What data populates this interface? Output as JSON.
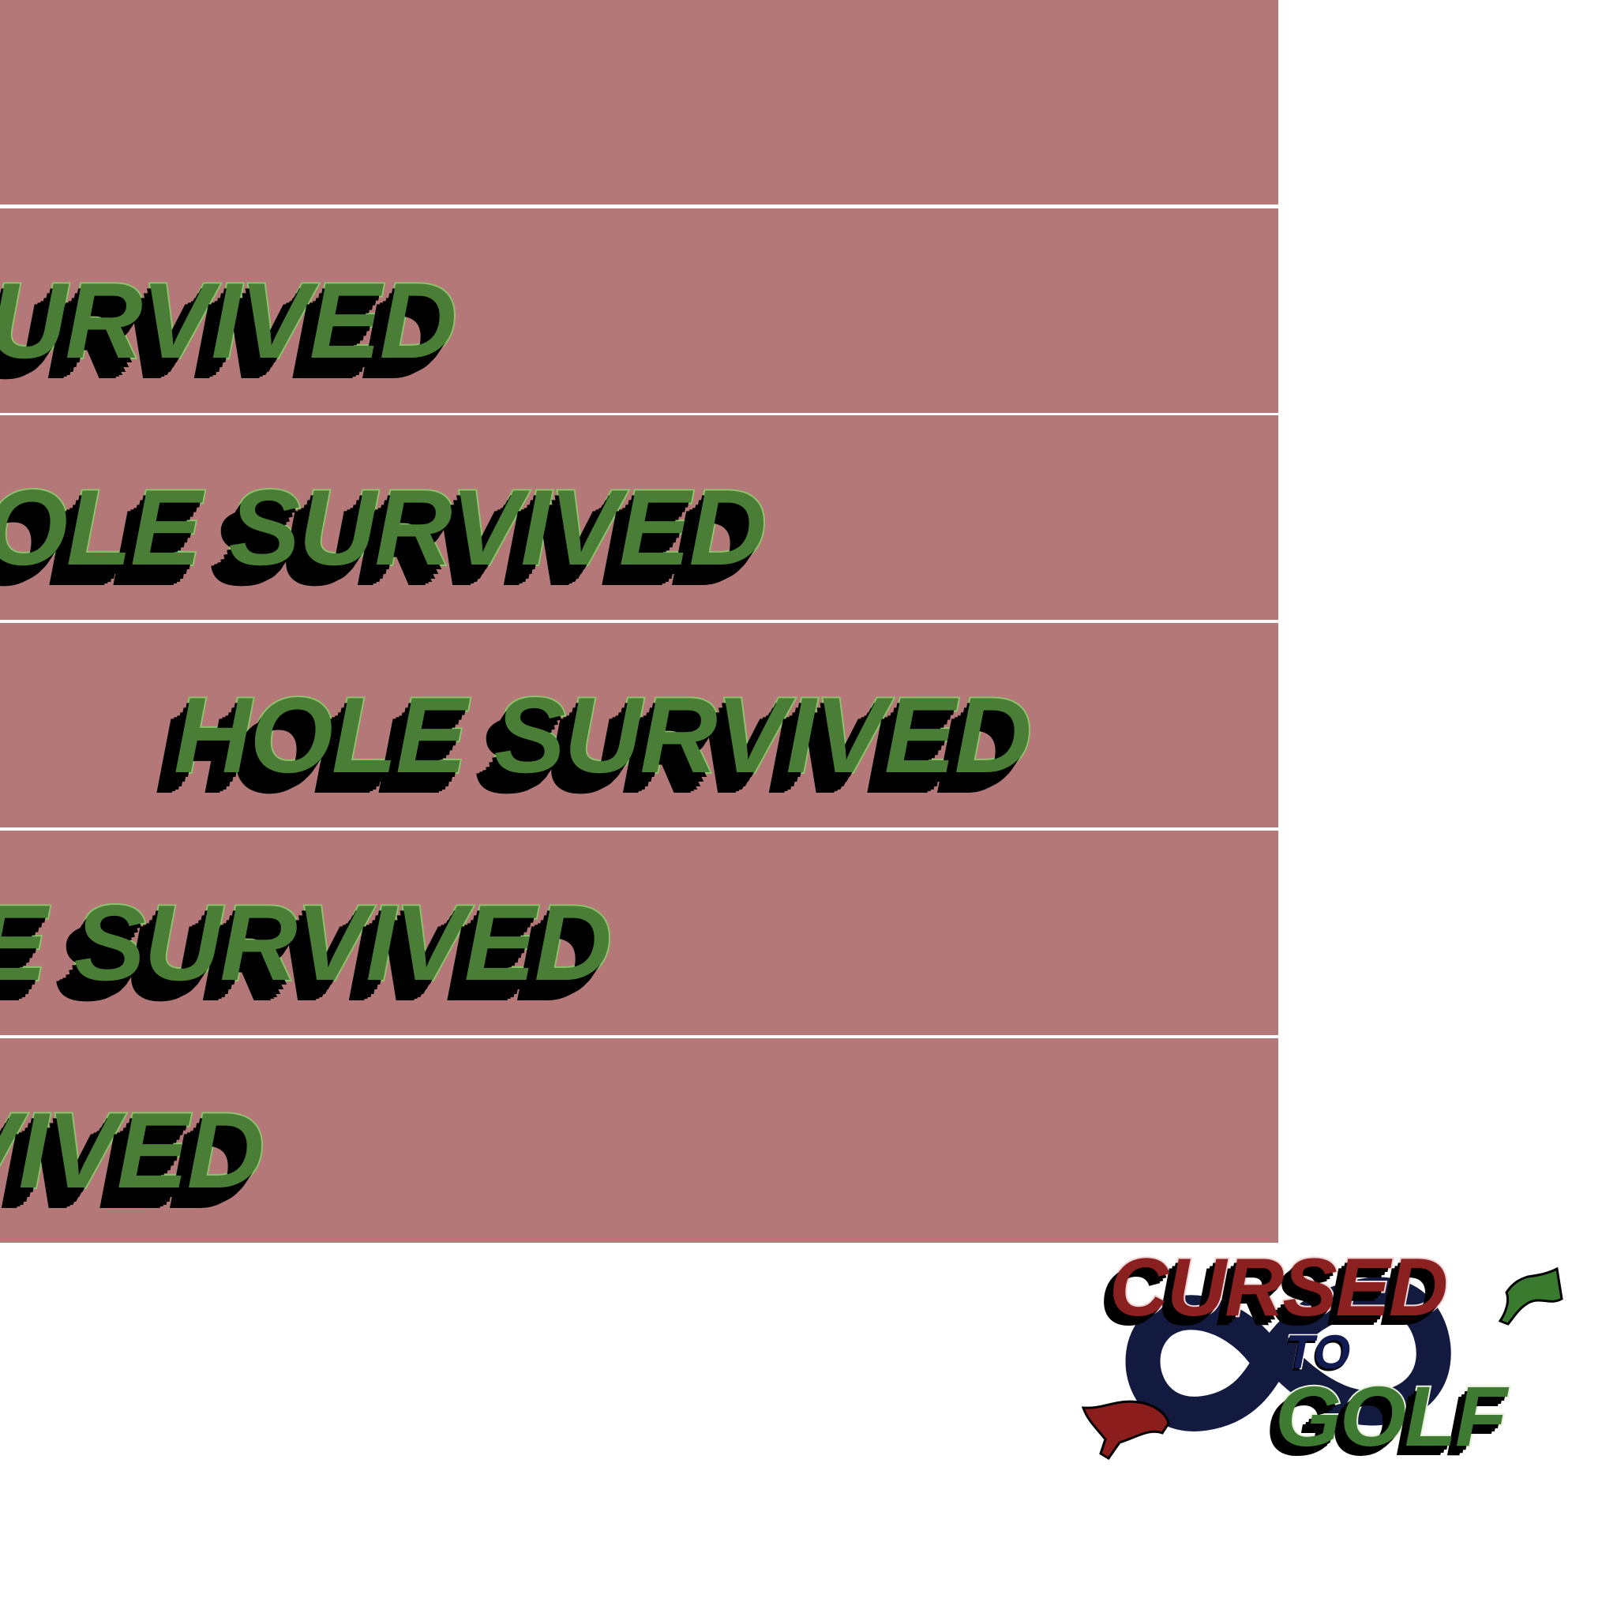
{
  "sprite_sheet": {
    "banner_color": "#b37877",
    "divider_color": "#ffffff",
    "frames": [
      {
        "text": ""
      },
      {
        "text": "HOLE SURVIVED"
      },
      {
        "text": "HOLE SURVIVED"
      },
      {
        "text": "HOLE SURVIVED"
      },
      {
        "text": "HOLE SURVIVED"
      },
      {
        "text": "HOLE SURVIVED"
      }
    ],
    "text_colors": {
      "fill": "#4a7d36",
      "outline": "#8fc26d",
      "shadow": "#000000"
    }
  },
  "logo": {
    "line1": "CURSED",
    "line2": "TO",
    "line3": "GOLF",
    "colors": {
      "cursed": "#8b2020",
      "to": "#121a52",
      "golf": "#3f7a33",
      "infinity": "#121a3f",
      "left_flag": "#8b1d1d",
      "right_flag": "#3a7a2e"
    },
    "icons": [
      "infinity-symbol-icon",
      "red-flag-icon",
      "green-flag-icon"
    ]
  }
}
